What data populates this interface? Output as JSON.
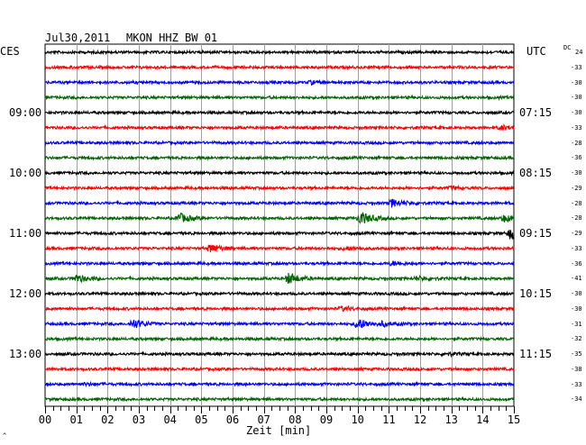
{
  "header": {
    "date": "Jul30,2011",
    "station": "MKON HHZ BW 01"
  },
  "left_timezone": "CES",
  "right_timezone": "UTC",
  "dc_label": "DC",
  "footer_mark": "^",
  "chart_data": {
    "type": "line",
    "title": "",
    "xlabel": "Zeit [min]",
    "x_ticks": [
      "00",
      "01",
      "02",
      "03",
      "04",
      "05",
      "06",
      "07",
      "08",
      "09",
      "10",
      "11",
      "12",
      "13",
      "14",
      "15"
    ],
    "xlim": [
      0,
      15
    ],
    "trace_colors": [
      "#000000",
      "#ff0000",
      "#0000ff",
      "#006400"
    ],
    "left_time_labels": [
      {
        "row": 4,
        "text": "09:00"
      },
      {
        "row": 8,
        "text": "10:00"
      },
      {
        "row": 12,
        "text": "11:00"
      },
      {
        "row": 16,
        "text": "12:00"
      },
      {
        "row": 20,
        "text": "13:00"
      }
    ],
    "right_time_labels": [
      {
        "row": 4,
        "text": "07:15"
      },
      {
        "row": 8,
        "text": "08:15"
      },
      {
        "row": 12,
        "text": "09:15"
      },
      {
        "row": 16,
        "text": "10:15"
      },
      {
        "row": 20,
        "text": "11:15"
      }
    ],
    "dc_offsets": [
      "24",
      "-33",
      "-30",
      "-30",
      "-30",
      "-33",
      "-28",
      "-36",
      "-30",
      "-29",
      "-28",
      "-28",
      "-29",
      "-33",
      "-36",
      "-41",
      "-30",
      "-30",
      "-31",
      "-32",
      "-35",
      "-38",
      "-33",
      "-34"
    ],
    "events": [
      {
        "row": 2,
        "minute": 8.5,
        "amp": 1.5
      },
      {
        "row": 5,
        "minute": 14.6,
        "amp": 2.5
      },
      {
        "row": 9,
        "minute": 13.0,
        "amp": 1.3
      },
      {
        "row": 10,
        "minute": 11.1,
        "amp": 4.0
      },
      {
        "row": 11,
        "minute": 4.3,
        "amp": 5.0
      },
      {
        "row": 11,
        "minute": 10.1,
        "amp": 7.0
      },
      {
        "row": 11,
        "minute": 14.7,
        "amp": 3.5
      },
      {
        "row": 12,
        "minute": 14.9,
        "amp": 6.0
      },
      {
        "row": 13,
        "minute": 5.3,
        "amp": 4.5
      },
      {
        "row": 13,
        "minute": 9.6,
        "amp": 2.0
      },
      {
        "row": 14,
        "minute": 11.1,
        "amp": 2.0
      },
      {
        "row": 15,
        "minute": 1.0,
        "amp": 4.0
      },
      {
        "row": 15,
        "minute": 7.8,
        "amp": 6.0
      },
      {
        "row": 15,
        "minute": 11.9,
        "amp": 2.0
      },
      {
        "row": 17,
        "minute": 9.5,
        "amp": 2.0
      },
      {
        "row": 18,
        "minute": 2.8,
        "amp": 5.0
      },
      {
        "row": 18,
        "minute": 10.0,
        "amp": 6.0
      },
      {
        "row": 18,
        "minute": 10.8,
        "amp": 2.0
      },
      {
        "row": 20,
        "minute": 12.8,
        "amp": 1.5
      },
      {
        "row": 22,
        "minute": 1.3,
        "amp": 1.0
      }
    ]
  }
}
